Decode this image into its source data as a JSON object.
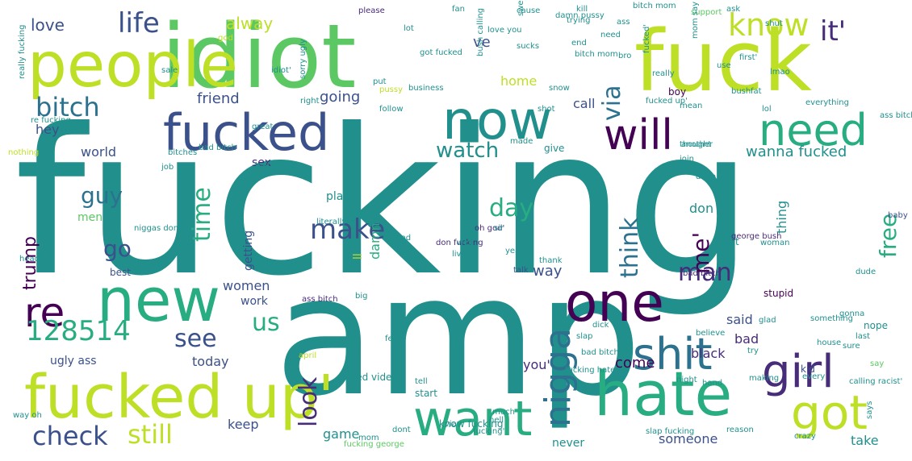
{
  "palette": {
    "purple": "#440154",
    "indigo": "#472c7a",
    "blue": "#3b518b",
    "slate": "#2c718e",
    "teal": "#21908d",
    "green": "#27ad81",
    "lime": "#5cc863",
    "yellow": "#bddf26",
    "brightyellow": "#d8e219"
  },
  "words": [
    {
      "t": "fucking",
      "c": "teal"
    },
    {
      "t": "amp",
      "c": "teal"
    },
    {
      "t": "idiot",
      "c": "lime"
    },
    {
      "t": "fuck",
      "c": "yellow"
    },
    {
      "t": "people",
      "c": "yellow"
    },
    {
      "t": "fucked up'",
      "c": "yellow"
    },
    {
      "t": "hate",
      "c": "green"
    },
    {
      "t": "new",
      "c": "green"
    },
    {
      "t": "fucked",
      "c": "blue"
    },
    {
      "t": "now",
      "c": "teal"
    },
    {
      "t": "one",
      "c": "purple"
    },
    {
      "t": "want",
      "c": "green"
    },
    {
      "t": "will",
      "c": "purple"
    },
    {
      "t": "need",
      "c": "green"
    },
    {
      "t": "girl",
      "c": "indigo"
    },
    {
      "t": "shit",
      "c": "slate"
    },
    {
      "t": "got",
      "c": "yellow"
    },
    {
      "t": "re",
      "c": "purple"
    },
    {
      "t": "nigga",
      "c": "slate"
    },
    {
      "t": "128514",
      "c": "green"
    },
    {
      "t": "know",
      "c": "yellow"
    },
    {
      "t": "it'",
      "c": "indigo"
    },
    {
      "t": "life",
      "c": "blue"
    },
    {
      "t": "bitch",
      "c": "slate"
    },
    {
      "t": "check",
      "c": "blue"
    },
    {
      "t": "still",
      "c": "yellow"
    },
    {
      "t": "look",
      "c": "indigo"
    },
    {
      "t": "via",
      "c": "slate"
    },
    {
      "t": "think",
      "c": "slate"
    },
    {
      "t": "time",
      "c": "green"
    },
    {
      "t": "make",
      "c": "blue"
    },
    {
      "t": "guy",
      "c": "slate"
    },
    {
      "t": "go",
      "c": "blue"
    },
    {
      "t": "day",
      "c": "green"
    },
    {
      "t": "watch",
      "c": "teal"
    },
    {
      "t": "see",
      "c": "blue"
    },
    {
      "t": "us",
      "c": "green"
    },
    {
      "t": "man",
      "c": "indigo"
    },
    {
      "t": "me'",
      "c": "purple"
    },
    {
      "t": "free",
      "c": "green"
    },
    {
      "t": "trump",
      "c": "purple"
    },
    {
      "t": "love",
      "c": "blue"
    },
    {
      "t": "alway",
      "c": "yellow"
    },
    {
      "t": "friend",
      "c": "blue"
    },
    {
      "t": "going",
      "c": "blue"
    },
    {
      "t": "hey",
      "c": "blue"
    },
    {
      "t": "world",
      "c": "blue"
    },
    {
      "t": "sex",
      "c": "indigo"
    },
    {
      "t": "call",
      "c": "blue"
    },
    {
      "t": "home",
      "c": "yellow"
    },
    {
      "t": "ve",
      "c": "blue"
    },
    {
      "t": "wanna fucked",
      "c": "teal"
    },
    {
      "t": "way",
      "c": "blue"
    },
    {
      "t": "play",
      "c": "teal"
    },
    {
      "t": "damn",
      "c": "green"
    },
    {
      "t": "don",
      "c": "teal"
    },
    {
      "t": "thing",
      "c": "teal"
    },
    {
      "t": "women",
      "c": "blue"
    },
    {
      "t": "work",
      "c": "blue"
    },
    {
      "t": "said",
      "c": "blue"
    },
    {
      "t": "bad",
      "c": "indigo"
    },
    {
      "t": "come",
      "c": "purple"
    },
    {
      "t": "black",
      "c": "indigo"
    },
    {
      "t": "today",
      "c": "blue"
    },
    {
      "t": "ugly ass",
      "c": "blue"
    },
    {
      "t": "you'",
      "c": "indigo"
    },
    {
      "t": "keep",
      "c": "blue"
    },
    {
      "t": "game",
      "c": "teal"
    },
    {
      "t": "never",
      "c": "teal"
    },
    {
      "t": "someone",
      "c": "blue"
    },
    {
      "t": "take",
      "c": "teal"
    },
    {
      "t": "getting",
      "c": "blue"
    },
    {
      "t": "ll",
      "c": "yellow"
    },
    {
      "t": "men",
      "c": "lime"
    },
    {
      "t": "best",
      "c": "blue"
    },
    {
      "t": "nope",
      "c": "teal"
    },
    {
      "t": "stupid",
      "c": "purple"
    },
    {
      "t": "kid",
      "c": "blue"
    },
    {
      "t": "hot",
      "c": "teal"
    },
    {
      "t": "liked video",
      "c": "teal"
    },
    {
      "t": "start",
      "c": "teal"
    },
    {
      "t": "dont",
      "c": "teal"
    },
    {
      "t": "know fucking",
      "c": "teal"
    },
    {
      "t": "fucking george",
      "c": "lime"
    },
    {
      "t": "fucking hate",
      "c": "teal"
    },
    {
      "t": "don fucking",
      "c": "indigo"
    },
    {
      "t": "business",
      "c": "teal"
    },
    {
      "t": "please",
      "c": "indigo"
    },
    {
      "t": "pussy",
      "c": "yellow"
    },
    {
      "t": "boy",
      "c": "purple"
    },
    {
      "t": "give",
      "c": "teal"
    },
    {
      "t": "made",
      "c": "teal"
    },
    {
      "t": "another",
      "c": "teal"
    },
    {
      "t": "bush calling",
      "c": "teal"
    },
    {
      "t": "ass bitch",
      "c": "indigo"
    },
    {
      "t": "talk",
      "c": "blue"
    },
    {
      "t": "live",
      "c": "teal"
    },
    {
      "t": "yeah",
      "c": "teal"
    },
    {
      "t": "april",
      "c": "yellow"
    },
    {
      "t": "hell",
      "c": "teal"
    },
    {
      "t": "reason",
      "c": "teal"
    },
    {
      "t": "crazy",
      "c": "teal"
    },
    {
      "t": "calling racist'",
      "c": "teal"
    },
    {
      "t": "dude",
      "c": "teal"
    },
    {
      "t": "baby",
      "c": "blue"
    },
    {
      "t": "george bush",
      "c": "indigo"
    },
    {
      "t": "bad bitch",
      "c": "indigo"
    },
    {
      "t": "something",
      "c": "teal"
    },
    {
      "t": "gonna",
      "c": "teal"
    },
    {
      "t": "say",
      "c": "lime"
    },
    {
      "t": "fucking'",
      "c": "teal"
    },
    {
      "t": "oh god'",
      "c": "indigo"
    },
    {
      "t": "literally",
      "c": "teal"
    },
    {
      "t": "thank",
      "c": "teal"
    },
    {
      "t": "really fucking",
      "c": "teal"
    },
    {
      "t": "re fucking",
      "c": "teal"
    },
    {
      "t": "nothing",
      "c": "yellow"
    },
    {
      "t": "twitter",
      "c": "teal"
    },
    {
      "t": "job",
      "c": "teal"
    },
    {
      "t": "idiot'",
      "c": "teal"
    },
    {
      "t": "sorry ugly",
      "c": "teal"
    },
    {
      "t": "put",
      "c": "teal"
    },
    {
      "t": "follow",
      "c": "teal"
    },
    {
      "t": "right",
      "c": "teal"
    },
    {
      "t": "great",
      "c": "teal"
    },
    {
      "t": "bitch mom",
      "c": "teal"
    },
    {
      "t": "support",
      "c": "lime"
    },
    {
      "t": "god",
      "c": "yellow"
    },
    {
      "t": "fucked'",
      "c": "teal"
    },
    {
      "t": "need",
      "c": "teal"
    },
    {
      "t": "mom say",
      "c": "teal"
    },
    {
      "t": "really",
      "c": "teal"
    },
    {
      "t": "lmao",
      "c": "teal"
    },
    {
      "t": "first'",
      "c": "teal"
    },
    {
      "t": "sale",
      "c": "teal"
    },
    {
      "t": "woman",
      "c": "teal"
    },
    {
      "t": "thought",
      "c": "teal"
    },
    {
      "t": "bush",
      "c": "teal"
    },
    {
      "t": "done",
      "c": "teal"
    },
    {
      "t": "much",
      "c": "teal"
    },
    {
      "t": "believe",
      "c": "teal"
    },
    {
      "t": "hand",
      "c": "teal"
    },
    {
      "t": "slap",
      "c": "teal"
    },
    {
      "t": "bad bitches",
      "c": "teal"
    },
    {
      "t": "making",
      "c": "teal"
    },
    {
      "t": "every",
      "c": "teal"
    },
    {
      "t": "night",
      "c": "teal"
    },
    {
      "t": "everything",
      "c": "teal"
    },
    {
      "t": "lol",
      "c": "teal"
    },
    {
      "t": "ass bitch",
      "c": "teal"
    },
    {
      "t": "dick",
      "c": "teal"
    },
    {
      "t": "house",
      "c": "teal"
    },
    {
      "t": "sure",
      "c": "teal"
    },
    {
      "t": "slap fucking",
      "c": "teal"
    },
    {
      "t": "last",
      "c": "teal"
    },
    {
      "t": "says",
      "c": "teal"
    },
    {
      "t": "try",
      "c": "teal"
    },
    {
      "t": "head",
      "c": "teal"
    },
    {
      "t": "glad",
      "c": "teal"
    },
    {
      "t": "way oh",
      "c": "teal"
    },
    {
      "t": "niggas don",
      "c": "teal"
    },
    {
      "t": "bad bitch",
      "c": "teal"
    },
    {
      "t": "bitches",
      "c": "teal"
    },
    {
      "t": "goood",
      "c": "teal"
    },
    {
      "t": "well",
      "c": "teal"
    },
    {
      "t": "use",
      "c": "teal"
    },
    {
      "t": "join",
      "c": "teal"
    },
    {
      "t": "sir",
      "c": "teal"
    },
    {
      "t": "shut",
      "c": "teal"
    },
    {
      "t": "kill",
      "c": "teal"
    },
    {
      "t": "ask",
      "c": "teal"
    },
    {
      "t": "sweet",
      "c": "teal"
    },
    {
      "t": "fat",
      "c": "teal"
    },
    {
      "t": "cause",
      "c": "teal"
    },
    {
      "t": "mom",
      "c": "teal"
    },
    {
      "t": "sucks",
      "c": "teal"
    },
    {
      "t": "end",
      "c": "teal"
    },
    {
      "t": "bro",
      "c": "teal"
    },
    {
      "t": "trying",
      "c": "teal"
    },
    {
      "t": "got fucked",
      "c": "teal"
    },
    {
      "t": "love you",
      "c": "teal"
    },
    {
      "t": "damn pussy",
      "c": "teal"
    },
    {
      "t": "snow",
      "c": "teal"
    },
    {
      "t": "fan",
      "c": "teal"
    },
    {
      "t": "lot",
      "c": "teal"
    },
    {
      "t": "ass",
      "c": "teal"
    },
    {
      "t": "bitch mom",
      "c": "teal"
    },
    {
      "t": "shot",
      "c": "teal"
    },
    {
      "t": "fucked up'",
      "c": "teal"
    },
    {
      "t": "mean",
      "c": "teal"
    },
    {
      "t": "big",
      "c": "teal"
    },
    {
      "t": "feel",
      "c": "teal"
    },
    {
      "t": "tell",
      "c": "teal"
    },
    {
      "t": "via",
      "c": "teal"
    }
  ]
}
